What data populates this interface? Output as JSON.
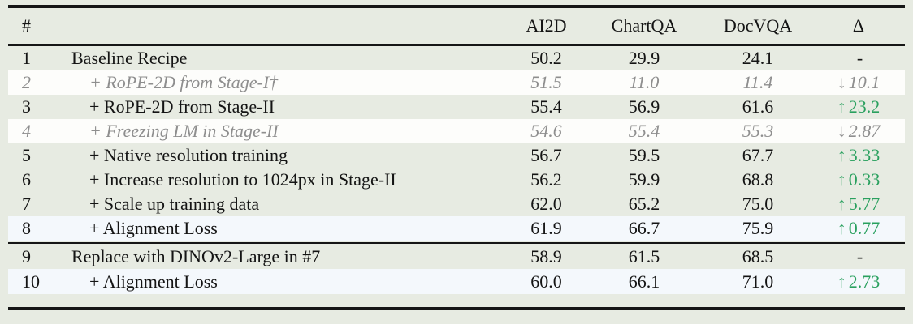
{
  "colors": {
    "page_background": "#e7ebe2",
    "row_highlight_white": "#fdfdfb",
    "row_highlight_blue": "#f4f8fc",
    "gain_green": "#29a05e",
    "muted_gray": "#8e8e8e",
    "rule_black": "#161616"
  },
  "table": {
    "header": {
      "col_num": "#",
      "col_recipe": "",
      "col_ai2d": "AI2D",
      "col_chartqa": "ChartQA",
      "col_docvqa": "DocVQA",
      "col_delta": "Δ"
    },
    "rows": [
      {
        "num": "1",
        "recipe": "Baseline Recipe",
        "ai2d": "50.2",
        "chartqa": "29.9",
        "docvqa": "24.1",
        "delta_arrow": "",
        "delta_value": "-"
      },
      {
        "num": "2",
        "recipe": "+ RoPE-2D from Stage-I†",
        "ai2d": "51.5",
        "chartqa": "11.0",
        "docvqa": "11.4",
        "delta_arrow": "↓",
        "delta_value": "10.1"
      },
      {
        "num": "3",
        "recipe": "+ RoPE-2D from Stage-II",
        "ai2d": "55.4",
        "chartqa": "56.9",
        "docvqa": "61.6",
        "delta_arrow": "↑",
        "delta_value": "23.2"
      },
      {
        "num": "4",
        "recipe": "+ Freezing LM in Stage-II",
        "ai2d": "54.6",
        "chartqa": "55.4",
        "docvqa": "55.3",
        "delta_arrow": "↓",
        "delta_value": "2.87"
      },
      {
        "num": "5",
        "recipe": "+ Native resolution training",
        "ai2d": "56.7",
        "chartqa": "59.5",
        "docvqa": "67.7",
        "delta_arrow": "↑",
        "delta_value": "3.33"
      },
      {
        "num": "6",
        "recipe": "+ Increase resolution to 1024px in Stage-II",
        "ai2d": "56.2",
        "chartqa": "59.9",
        "docvqa": "68.8",
        "delta_arrow": "↑",
        "delta_value": "0.33"
      },
      {
        "num": "7",
        "recipe": "+ Scale up training data",
        "ai2d": "62.0",
        "chartqa": "65.2",
        "docvqa": "75.0",
        "delta_arrow": "↑",
        "delta_value": "5.77"
      },
      {
        "num": "8",
        "recipe": "+ Alignment Loss",
        "ai2d": "61.9",
        "chartqa": "66.7",
        "docvqa": "75.9",
        "delta_arrow": "↑",
        "delta_value": "0.77"
      },
      {
        "num": "9",
        "recipe": "Replace with DINOv2-Large in #7",
        "ai2d": "58.9",
        "chartqa": "61.5",
        "docvqa": "68.5",
        "delta_arrow": "",
        "delta_value": "-"
      },
      {
        "num": "10",
        "recipe": "+ Alignment Loss",
        "ai2d": "60.0",
        "chartqa": "66.1",
        "docvqa": "71.0",
        "delta_arrow": "↑",
        "delta_value": "2.73"
      }
    ]
  }
}
